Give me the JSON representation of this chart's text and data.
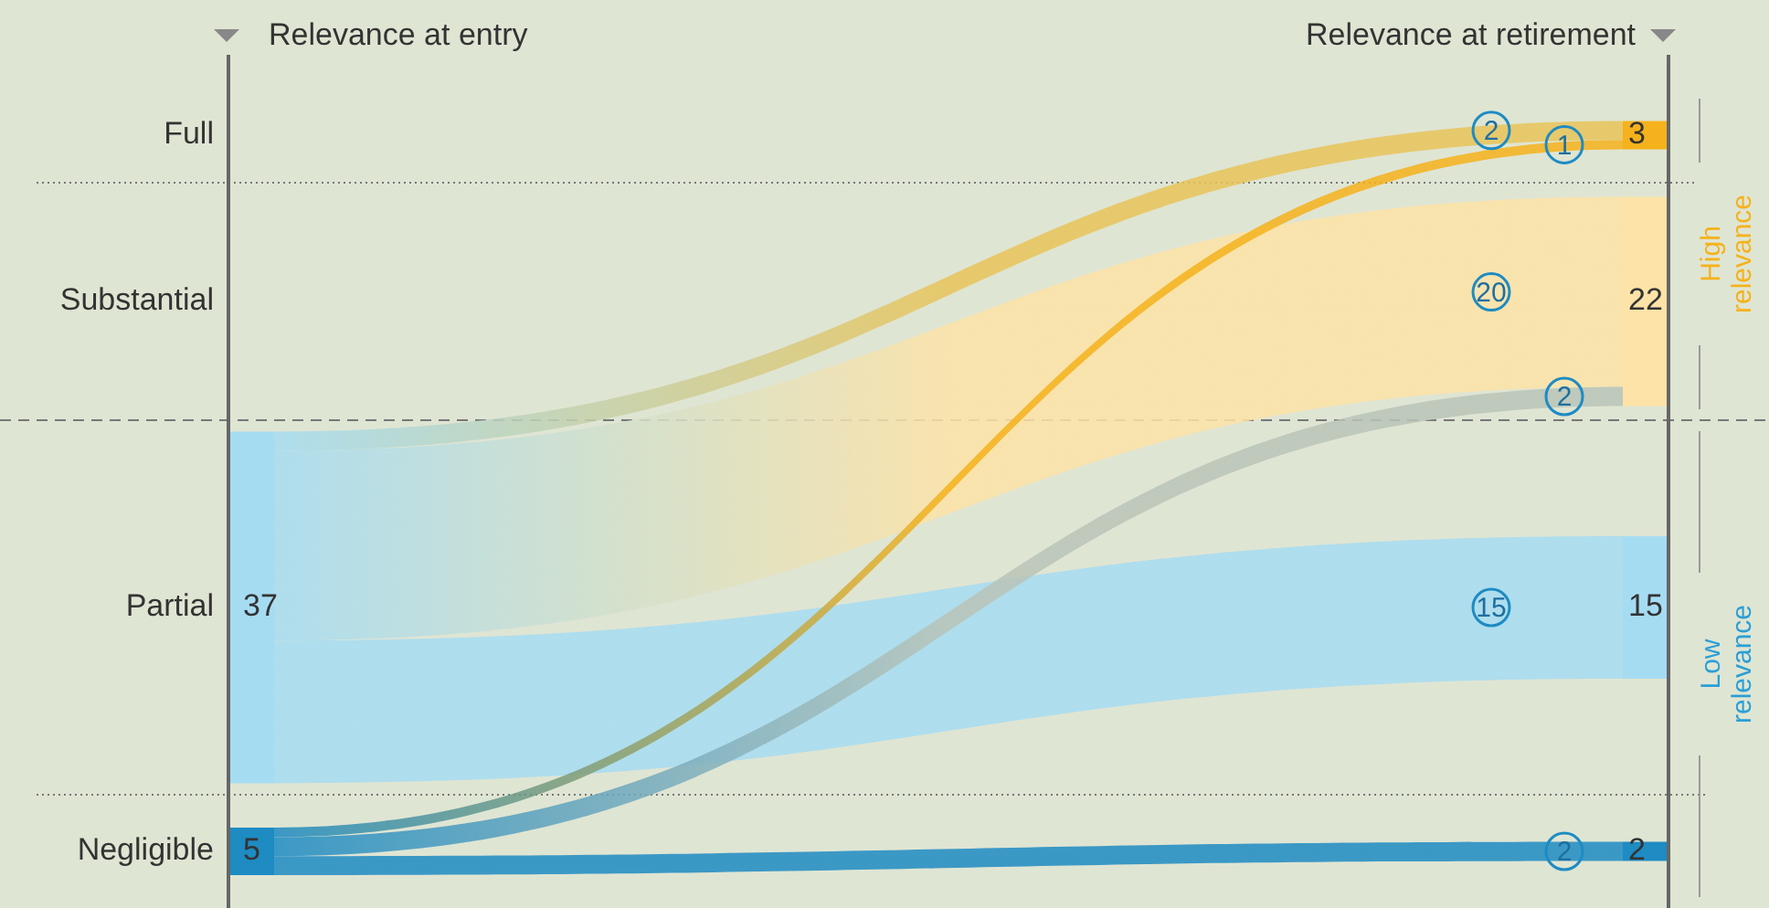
{
  "chart_data": {
    "type": "other",
    "categories": [
      "Full",
      "Substantial",
      "Partial",
      "Negligible"
    ],
    "series": [
      {
        "values": [
          null,
          null,
          37,
          5
        ],
        "colors": [
          null,
          null,
          "#a6dcf2",
          "#1e8bc3"
        ]
      },
      {
        "values": [
          3,
          22,
          15,
          2
        ],
        "colors": [
          "#f5b21c",
          "#fde3a7",
          "#a6dcf2",
          "#1e8bc3"
        ]
      },
      {
        "values": [
          2,
          20,
          15,
          null
        ],
        "colors": [
          "#e8c45a",
          "#fde3a7",
          "#a6dcf2",
          null
        ]
      },
      {
        "values": [
          1,
          2,
          null,
          2
        ],
        "colors": [
          "#f5b21c",
          "#b9c4b8",
          null,
          "#1e8bc3"
        ]
      }
    ],
    "data_labels": true,
    "annotations": [
      "Relevance at entry",
      "Relevance at retirement",
      "High relevance",
      "Low relevance"
    ]
  }
}
